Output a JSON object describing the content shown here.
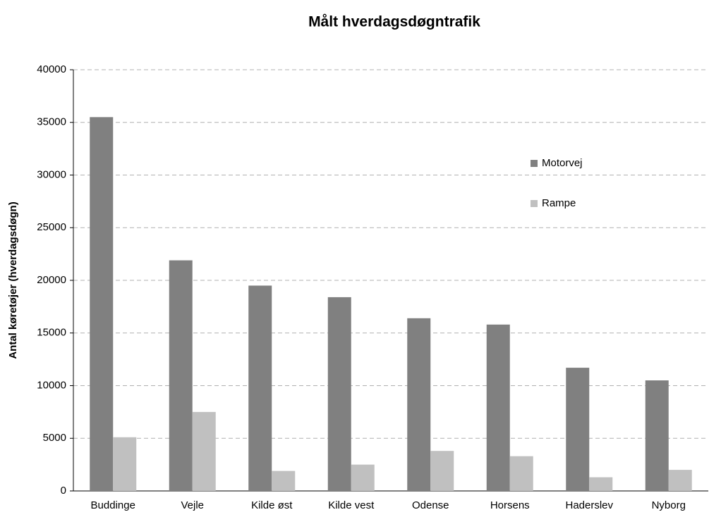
{
  "chart_data": {
    "type": "bar",
    "title": "Målt hverdagsdøgntrafik",
    "y_label": "Antal køretøjer (hverdagsdøgn)",
    "categories": [
      "Buddinge",
      "Vejle",
      "Kilde øst",
      "Kilde vest",
      "Odense",
      "Horsens",
      "Haderslev",
      "Nyborg"
    ],
    "series": [
      {
        "name": "Motorvej",
        "color": "#808080",
        "values": [
          35500,
          21900,
          19500,
          18400,
          16400,
          15800,
          11700,
          10500
        ]
      },
      {
        "name": "Rampe",
        "color": "#c0c0c0",
        "values": [
          5100,
          7500,
          1900,
          2500,
          3800,
          3300,
          1300,
          2000
        ]
      }
    ],
    "ylim": [
      0,
      40000
    ],
    "yticks": [
      0,
      5000,
      10000,
      15000,
      20000,
      25000,
      30000,
      35000,
      40000
    ],
    "grid": true,
    "legend": "upper right"
  }
}
